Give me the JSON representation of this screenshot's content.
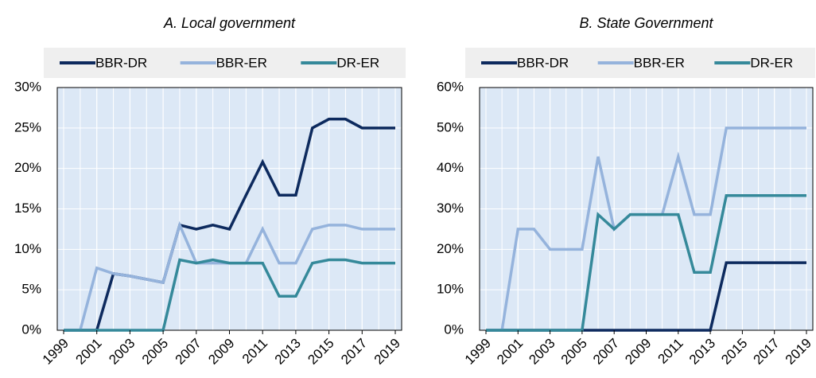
{
  "chart_data": [
    {
      "type": "line",
      "title": "A. Local government",
      "x": [
        1999,
        2000,
        2001,
        2002,
        2003,
        2004,
        2005,
        2006,
        2007,
        2008,
        2009,
        2010,
        2011,
        2012,
        2013,
        2014,
        2015,
        2016,
        2017,
        2018,
        2019
      ],
      "xlim": [
        1999,
        2019
      ],
      "xticks": [
        1999,
        2001,
        2003,
        2005,
        2007,
        2009,
        2011,
        2013,
        2015,
        2017,
        2019
      ],
      "ylim": [
        0,
        30
      ],
      "yticks": [
        {
          "value": 0,
          "label": "0%"
        },
        {
          "value": 5,
          "label": "5%"
        },
        {
          "value": 10,
          "label": "10%"
        },
        {
          "value": 15,
          "label": "15%"
        },
        {
          "value": 20,
          "label": "20%"
        },
        {
          "value": 25,
          "label": "25%"
        },
        {
          "value": 30,
          "label": "30%"
        }
      ],
      "grid": true,
      "legend": "top",
      "series": [
        {
          "name": "BBR-DR",
          "color": "#0d2a5e",
          "values": [
            0,
            0,
            0,
            7,
            6.7,
            6.3,
            5.9,
            13,
            12.5,
            13,
            12.5,
            16.7,
            20.8,
            16.7,
            16.7,
            25,
            26.1,
            26.1,
            25,
            25,
            25
          ]
        },
        {
          "name": "BBR-ER",
          "color": "#95b3dc",
          "values": [
            0,
            0,
            7.7,
            7,
            6.7,
            6.3,
            5.9,
            13,
            8.3,
            8.3,
            8.3,
            8.3,
            12.5,
            8.3,
            8.3,
            12.5,
            13,
            13,
            12.5,
            12.5,
            12.5
          ]
        },
        {
          "name": "DR-ER",
          "color": "#35899a",
          "values": [
            0,
            0,
            0,
            0,
            0,
            0,
            0,
            8.7,
            8.3,
            8.7,
            8.3,
            8.3,
            8.3,
            4.2,
            4.2,
            8.3,
            8.7,
            8.7,
            8.3,
            8.3,
            8.3
          ]
        }
      ]
    },
    {
      "type": "line",
      "title": "B. State Government",
      "x": [
        1999,
        2000,
        2001,
        2002,
        2003,
        2004,
        2005,
        2006,
        2007,
        2008,
        2009,
        2010,
        2011,
        2012,
        2013,
        2014,
        2015,
        2016,
        2017,
        2018,
        2019
      ],
      "xlim": [
        1999,
        2019
      ],
      "xticks": [
        1999,
        2001,
        2003,
        2005,
        2007,
        2009,
        2011,
        2013,
        2015,
        2017,
        2019
      ],
      "ylim": [
        0,
        60
      ],
      "yticks": [
        {
          "value": 0,
          "label": "0%"
        },
        {
          "value": 10,
          "label": "10%"
        },
        {
          "value": 20,
          "label": "20%"
        },
        {
          "value": 30,
          "label": "30%"
        },
        {
          "value": 40,
          "label": "40%"
        },
        {
          "value": 50,
          "label": "50%"
        },
        {
          "value": 60,
          "label": "60%"
        }
      ],
      "grid": true,
      "legend": "top",
      "series": [
        {
          "name": "BBR-DR",
          "color": "#0d2a5e",
          "values": [
            0,
            0,
            0,
            0,
            0,
            0,
            0,
            0,
            0,
            0,
            0,
            0,
            0,
            0,
            0,
            16.7,
            16.7,
            16.7,
            16.7,
            16.7,
            16.7
          ]
        },
        {
          "name": "BBR-ER",
          "color": "#95b3dc",
          "values": [
            0,
            0,
            25,
            25,
            20,
            20,
            20,
            42.9,
            25,
            28.6,
            28.6,
            28.6,
            42.9,
            28.6,
            28.6,
            50,
            50,
            50,
            50,
            50,
            50
          ]
        },
        {
          "name": "DR-ER",
          "color": "#35899a",
          "values": [
            0,
            0,
            0,
            0,
            0,
            0,
            0,
            28.6,
            25,
            28.6,
            28.6,
            28.6,
            28.6,
            14.3,
            14.3,
            33.3,
            33.3,
            33.3,
            33.3,
            33.3,
            33.3
          ]
        }
      ]
    }
  ]
}
